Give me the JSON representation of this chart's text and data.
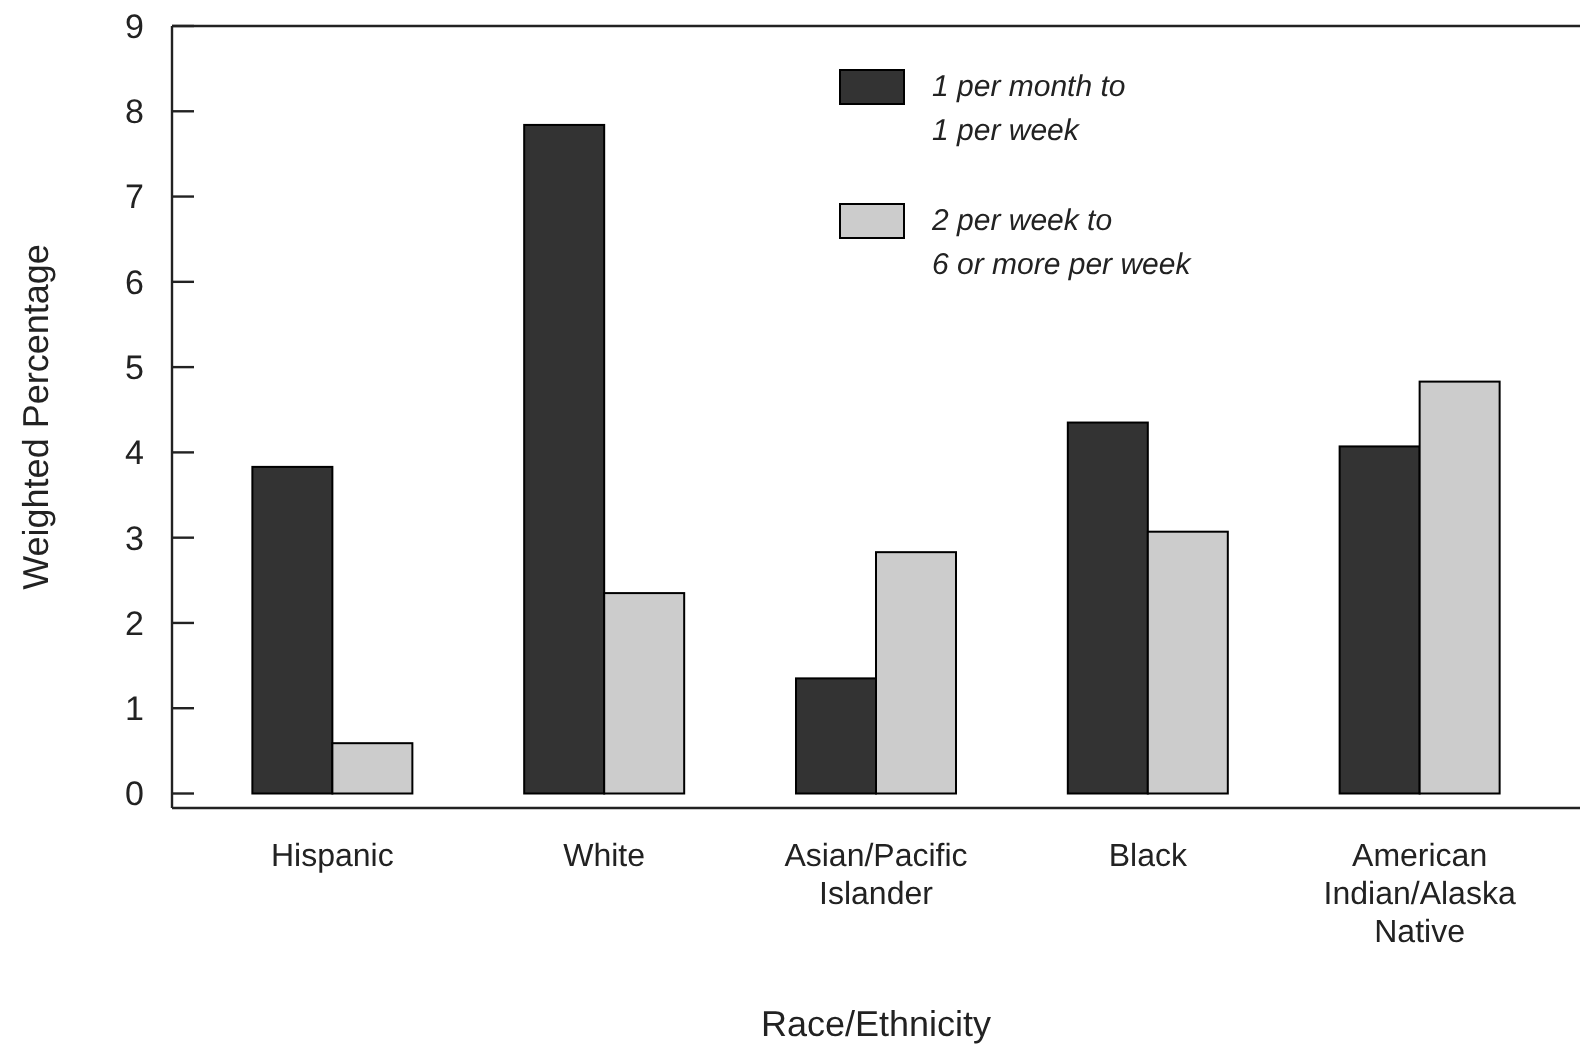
{
  "chart_data": {
    "type": "bar",
    "xlabel": "Race/Ethnicity",
    "ylabel": "Weighted Percentage",
    "categories": [
      "Hispanic",
      "White",
      "Asian/Pacific\nIslander",
      "Black",
      "American\nIndian/Alaska\nNative"
    ],
    "series": [
      {
        "name": "1 per month to\n1 per week",
        "color": "#333333",
        "values": [
          3.83,
          7.84,
          1.35,
          4.35,
          4.07
        ]
      },
      {
        "name": "2 per week to\n6 or more per week",
        "color": "#cccccc",
        "values": [
          0.59,
          2.35,
          2.83,
          3.07,
          4.83
        ]
      }
    ],
    "ylim": [
      -0.17,
      9
    ],
    "yticks": [
      0,
      1,
      2,
      3,
      4,
      5,
      6,
      7,
      8,
      9
    ],
    "grid": false,
    "legend": "top right"
  }
}
